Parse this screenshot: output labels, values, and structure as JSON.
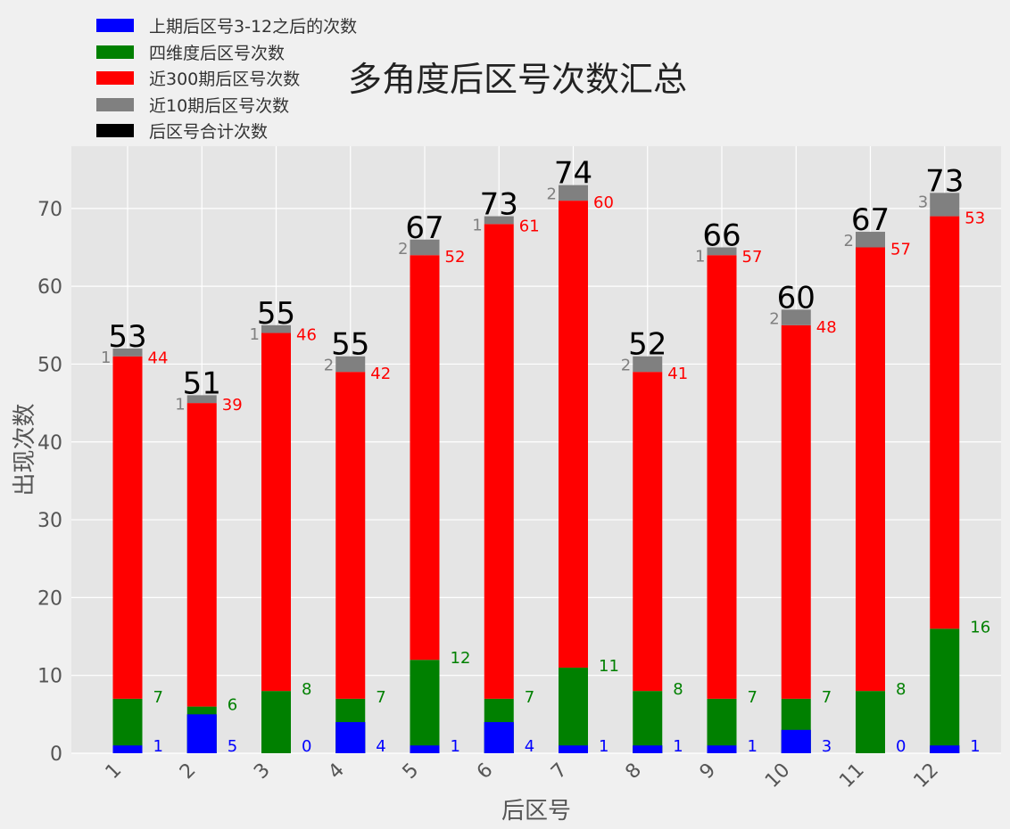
{
  "chart_data": {
    "type": "bar",
    "title": "多角度后区号次数汇总",
    "xlabel": "后区号",
    "ylabel": "出现次数",
    "ylim": [
      0,
      78
    ],
    "yticks": [
      0,
      10,
      20,
      30,
      40,
      50,
      60,
      70
    ],
    "categories": [
      "1",
      "2",
      "3",
      "4",
      "5",
      "6",
      "7",
      "8",
      "9",
      "10",
      "11",
      "12"
    ],
    "grid": true,
    "legend_position": "top-left",
    "series": [
      {
        "name": "上期后区号3-12之后的次数",
        "color": "#0000ff",
        "values": [
          1,
          5,
          0,
          4,
          1,
          4,
          1,
          1,
          1,
          3,
          0,
          1
        ]
      },
      {
        "name": "四维度后区号次数",
        "color": "#008000",
        "values": [
          7,
          6,
          8,
          7,
          12,
          7,
          11,
          8,
          7,
          7,
          8,
          16
        ]
      },
      {
        "name": "近300期后区号次数",
        "color": "#ff0000",
        "values": [
          44,
          39,
          46,
          42,
          52,
          61,
          60,
          41,
          57,
          48,
          57,
          53
        ]
      },
      {
        "name": "近10期后区号次数",
        "color": "#808080",
        "values": [
          1,
          1,
          1,
          2,
          2,
          1,
          2,
          2,
          1,
          2,
          2,
          3
        ]
      },
      {
        "name": "后区号合计次数",
        "color": "#000000",
        "values": [
          53,
          51,
          55,
          55,
          67,
          73,
          74,
          52,
          66,
          60,
          67,
          73
        ]
      }
    ]
  }
}
